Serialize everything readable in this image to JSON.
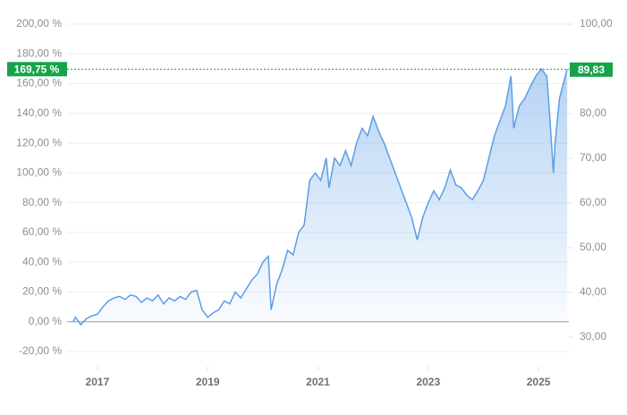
{
  "chart_data": {
    "type": "line",
    "x": [
      2016.56,
      2016.6,
      2016.7,
      2016.8,
      2016.9,
      2017.0,
      2017.1,
      2017.2,
      2017.3,
      2017.4,
      2017.5,
      2017.6,
      2017.7,
      2017.8,
      2017.9,
      2018.0,
      2018.1,
      2018.2,
      2018.3,
      2018.4,
      2018.5,
      2018.6,
      2018.7,
      2018.8,
      2018.9,
      2019.0,
      2019.1,
      2019.2,
      2019.3,
      2019.4,
      2019.5,
      2019.6,
      2019.7,
      2019.8,
      2019.9,
      2020.0,
      2020.1,
      2020.15,
      2020.25,
      2020.35,
      2020.45,
      2020.55,
      2020.65,
      2020.75,
      2020.85,
      2020.95,
      2021.05,
      2021.15,
      2021.2,
      2021.3,
      2021.4,
      2021.5,
      2021.6,
      2021.7,
      2021.8,
      2021.9,
      2022.0,
      2022.1,
      2022.2,
      2022.3,
      2022.4,
      2022.5,
      2022.6,
      2022.7,
      2022.8,
      2022.9,
      2023.0,
      2023.1,
      2023.2,
      2023.3,
      2023.4,
      2023.5,
      2023.6,
      2023.7,
      2023.8,
      2023.9,
      2024.0,
      2024.1,
      2024.2,
      2024.3,
      2024.4,
      2024.5,
      2024.55,
      2024.65,
      2024.75,
      2024.85,
      2024.95,
      2025.05,
      2025.15,
      2025.2,
      2025.27,
      2025.3,
      2025.38,
      2025.45,
      2025.52
    ],
    "series": [
      {
        "color": "#5b9ee6",
        "values": [
          0,
          3,
          -2,
          2,
          4,
          5,
          10,
          14,
          16,
          17,
          15,
          18,
          17,
          13,
          16,
          14,
          18,
          12,
          16,
          14,
          17,
          15,
          20,
          21,
          8,
          3,
          6,
          8,
          14,
          12,
          20,
          16,
          22,
          28,
          32,
          40,
          44,
          8,
          25,
          35,
          48,
          45,
          60,
          65,
          95,
          100,
          95,
          110,
          90,
          110,
          105,
          115,
          105,
          120,
          130,
          125,
          138,
          128,
          120,
          110,
          100,
          90,
          80,
          70,
          55,
          70,
          80,
          88,
          82,
          90,
          102,
          92,
          90,
          85,
          82,
          88,
          95,
          110,
          125,
          135,
          145,
          165,
          130,
          145,
          150,
          158,
          165,
          170,
          165,
          140,
          100,
          120,
          150,
          160,
          169.75
        ]
      }
    ],
    "xlim": [
      2016.45,
      2025.55
    ],
    "xticks": [
      2017,
      2019,
      2021,
      2023,
      2025
    ],
    "ylim": [
      -20,
      200
    ],
    "yticks": [
      {
        "value": 200,
        "label": "200,00 %"
      },
      {
        "value": 180,
        "label": "180,00 %"
      },
      {
        "value": 160,
        "label": "160,00 %"
      },
      {
        "value": 140,
        "label": "140,00 %"
      },
      {
        "value": 120,
        "label": "120,00 %"
      },
      {
        "value": 100,
        "label": "100,00 %"
      },
      {
        "value": 80,
        "label": "80,00 %"
      },
      {
        "value": 60,
        "label": "60,00 %"
      },
      {
        "value": 40,
        "label": "40,00 %"
      },
      {
        "value": 20,
        "label": "20,00 %"
      },
      {
        "value": 0,
        "label": "0,00 %"
      },
      {
        "value": -20,
        "label": "-20,00 %"
      }
    ],
    "y2lim": [
      26.8,
      100
    ],
    "y2ticks": [
      {
        "value": 100,
        "label": "100,00"
      },
      {
        "value": 90,
        "label": "90,00"
      },
      {
        "value": 80,
        "label": "80,00"
      },
      {
        "value": 70,
        "label": "70,00"
      },
      {
        "value": 60,
        "label": "60,00"
      },
      {
        "value": 50,
        "label": "50,00"
      },
      {
        "value": 40,
        "label": "40,00"
      },
      {
        "value": 30,
        "label": "30,00"
      }
    ],
    "last": {
      "value": 169.75,
      "label": "169,75 %",
      "value_y2": 89.83,
      "label_y2": "89,83",
      "color": "#16a34a"
    },
    "grid": true
  }
}
